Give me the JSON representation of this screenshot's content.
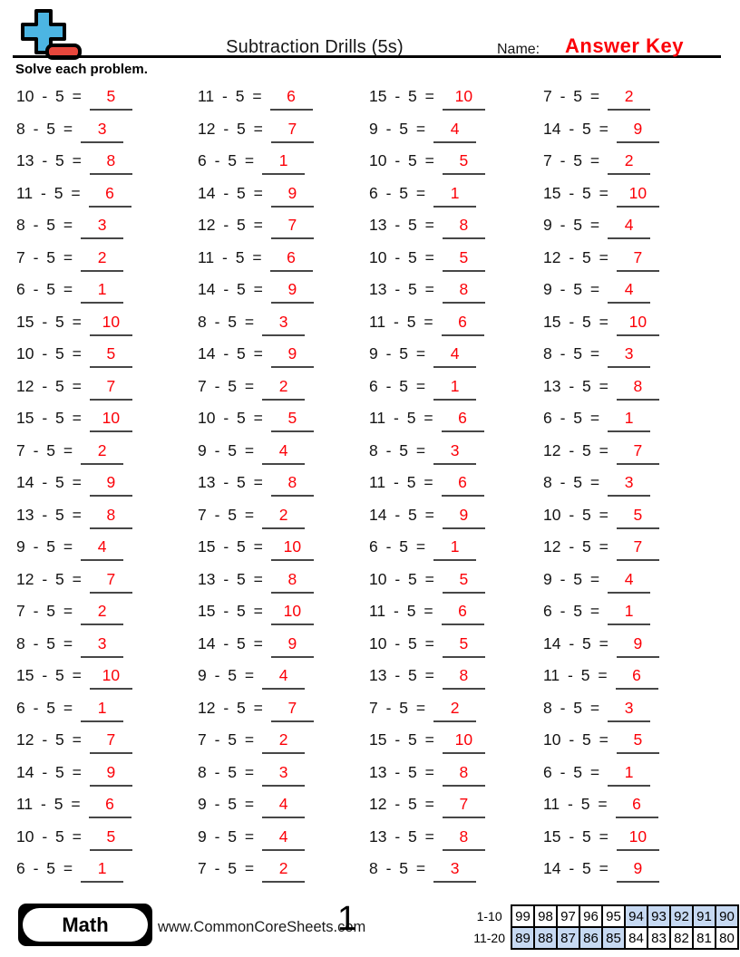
{
  "header": {
    "title": "Subtraction Drills (5s)",
    "name_label": "Name:",
    "name_value": "Answer Key"
  },
  "instructions": "Solve each problem.",
  "problems": {
    "subtrahend": 5,
    "columns": 4,
    "rows": [
      [
        {
          "q": "10 - 5 =",
          "a": "5"
        },
        {
          "q": "11 - 5 =",
          "a": "6"
        },
        {
          "q": "15 - 5 =",
          "a": "10"
        },
        {
          "q": "7 - 5 =",
          "a": "2"
        }
      ],
      [
        {
          "q": "8 - 5 =",
          "a": "3"
        },
        {
          "q": "12 - 5 =",
          "a": "7"
        },
        {
          "q": "9 - 5 =",
          "a": "4"
        },
        {
          "q": "14 - 5 =",
          "a": "9"
        }
      ],
      [
        {
          "q": "13 - 5 =",
          "a": "8"
        },
        {
          "q": "6 - 5 =",
          "a": "1"
        },
        {
          "q": "10 - 5 =",
          "a": "5"
        },
        {
          "q": "7 - 5 =",
          "a": "2"
        }
      ],
      [
        {
          "q": "11 - 5 =",
          "a": "6"
        },
        {
          "q": "14 - 5 =",
          "a": "9"
        },
        {
          "q": "6 - 5 =",
          "a": "1"
        },
        {
          "q": "15 - 5 =",
          "a": "10"
        }
      ],
      [
        {
          "q": "8 - 5 =",
          "a": "3"
        },
        {
          "q": "12 - 5 =",
          "a": "7"
        },
        {
          "q": "13 - 5 =",
          "a": "8"
        },
        {
          "q": "9 - 5 =",
          "a": "4"
        }
      ],
      [
        {
          "q": "7 - 5 =",
          "a": "2"
        },
        {
          "q": "11 - 5 =",
          "a": "6"
        },
        {
          "q": "10 - 5 =",
          "a": "5"
        },
        {
          "q": "12 - 5 =",
          "a": "7"
        }
      ],
      [
        {
          "q": "6 - 5 =",
          "a": "1"
        },
        {
          "q": "14 - 5 =",
          "a": "9"
        },
        {
          "q": "13 - 5 =",
          "a": "8"
        },
        {
          "q": "9 - 5 =",
          "a": "4"
        }
      ],
      [
        {
          "q": "15 - 5 =",
          "a": "10"
        },
        {
          "q": "8 - 5 =",
          "a": "3"
        },
        {
          "q": "11 - 5 =",
          "a": "6"
        },
        {
          "q": "15 - 5 =",
          "a": "10"
        }
      ],
      [
        {
          "q": "10 - 5 =",
          "a": "5"
        },
        {
          "q": "14 - 5 =",
          "a": "9"
        },
        {
          "q": "9 - 5 =",
          "a": "4"
        },
        {
          "q": "8 - 5 =",
          "a": "3"
        }
      ],
      [
        {
          "q": "12 - 5 =",
          "a": "7"
        },
        {
          "q": "7 - 5 =",
          "a": "2"
        },
        {
          "q": "6 - 5 =",
          "a": "1"
        },
        {
          "q": "13 - 5 =",
          "a": "8"
        }
      ],
      [
        {
          "q": "15 - 5 =",
          "a": "10"
        },
        {
          "q": "10 - 5 =",
          "a": "5"
        },
        {
          "q": "11 - 5 =",
          "a": "6"
        },
        {
          "q": "6 - 5 =",
          "a": "1"
        }
      ],
      [
        {
          "q": "7 - 5 =",
          "a": "2"
        },
        {
          "q": "9 - 5 =",
          "a": "4"
        },
        {
          "q": "8 - 5 =",
          "a": "3"
        },
        {
          "q": "12 - 5 =",
          "a": "7"
        }
      ],
      [
        {
          "q": "14 - 5 =",
          "a": "9"
        },
        {
          "q": "13 - 5 =",
          "a": "8"
        },
        {
          "q": "11 - 5 =",
          "a": "6"
        },
        {
          "q": "8 - 5 =",
          "a": "3"
        }
      ],
      [
        {
          "q": "13 - 5 =",
          "a": "8"
        },
        {
          "q": "7 - 5 =",
          "a": "2"
        },
        {
          "q": "14 - 5 =",
          "a": "9"
        },
        {
          "q": "10 - 5 =",
          "a": "5"
        }
      ],
      [
        {
          "q": "9 - 5 =",
          "a": "4"
        },
        {
          "q": "15 - 5 =",
          "a": "10"
        },
        {
          "q": "6 - 5 =",
          "a": "1"
        },
        {
          "q": "12 - 5 =",
          "a": "7"
        }
      ],
      [
        {
          "q": "12 - 5 =",
          "a": "7"
        },
        {
          "q": "13 - 5 =",
          "a": "8"
        },
        {
          "q": "10 - 5 =",
          "a": "5"
        },
        {
          "q": "9 - 5 =",
          "a": "4"
        }
      ],
      [
        {
          "q": "7 - 5 =",
          "a": "2"
        },
        {
          "q": "15 - 5 =",
          "a": "10"
        },
        {
          "q": "11 - 5 =",
          "a": "6"
        },
        {
          "q": "6 - 5 =",
          "a": "1"
        }
      ],
      [
        {
          "q": "8 - 5 =",
          "a": "3"
        },
        {
          "q": "14 - 5 =",
          "a": "9"
        },
        {
          "q": "10 - 5 =",
          "a": "5"
        },
        {
          "q": "14 - 5 =",
          "a": "9"
        }
      ],
      [
        {
          "q": "15 - 5 =",
          "a": "10"
        },
        {
          "q": "9 - 5 =",
          "a": "4"
        },
        {
          "q": "13 - 5 =",
          "a": "8"
        },
        {
          "q": "11 - 5 =",
          "a": "6"
        }
      ],
      [
        {
          "q": "6 - 5 =",
          "a": "1"
        },
        {
          "q": "12 - 5 =",
          "a": "7"
        },
        {
          "q": "7 - 5 =",
          "a": "2"
        },
        {
          "q": "8 - 5 =",
          "a": "3"
        }
      ],
      [
        {
          "q": "12 - 5 =",
          "a": "7"
        },
        {
          "q": "7 - 5 =",
          "a": "2"
        },
        {
          "q": "15 - 5 =",
          "a": "10"
        },
        {
          "q": "10 - 5 =",
          "a": "5"
        }
      ],
      [
        {
          "q": "14 - 5 =",
          "a": "9"
        },
        {
          "q": "8 - 5 =",
          "a": "3"
        },
        {
          "q": "13 - 5 =",
          "a": "8"
        },
        {
          "q": "6 - 5 =",
          "a": "1"
        }
      ],
      [
        {
          "q": "11 - 5 =",
          "a": "6"
        },
        {
          "q": "9 - 5 =",
          "a": "4"
        },
        {
          "q": "12 - 5 =",
          "a": "7"
        },
        {
          "q": "11 - 5 =",
          "a": "6"
        }
      ],
      [
        {
          "q": "10 - 5 =",
          "a": "5"
        },
        {
          "q": "9 - 5 =",
          "a": "4"
        },
        {
          "q": "13 - 5 =",
          "a": "8"
        },
        {
          "q": "15 - 5 =",
          "a": "10"
        }
      ],
      [
        {
          "q": "6 - 5 =",
          "a": "1"
        },
        {
          "q": "7 - 5 =",
          "a": "2"
        },
        {
          "q": "8 - 5 =",
          "a": "3"
        },
        {
          "q": "14 - 5 =",
          "a": "9"
        }
      ]
    ]
  },
  "footer": {
    "subject_badge": "Math",
    "website": "www.CommonCoreSheets.com",
    "page_number": "1",
    "grading_table": {
      "rows": [
        {
          "label": "1-10",
          "scores": [
            "99",
            "98",
            "97",
            "96",
            "95",
            "94",
            "93",
            "92",
            "91",
            "90"
          ],
          "highlight": [
            false,
            false,
            false,
            false,
            false,
            true,
            true,
            true,
            true,
            true
          ]
        },
        {
          "label": "11-20",
          "scores": [
            "89",
            "88",
            "87",
            "86",
            "85",
            "84",
            "83",
            "82",
            "81",
            "80"
          ],
          "highlight": [
            true,
            true,
            true,
            true,
            true,
            false,
            false,
            false,
            false,
            false
          ]
        }
      ]
    }
  },
  "colors": {
    "accent_red": "#fb0007",
    "logo_blue": "#4cb5e3",
    "logo_red": "#e8473c",
    "table_highlight": "#c6d9f2"
  }
}
